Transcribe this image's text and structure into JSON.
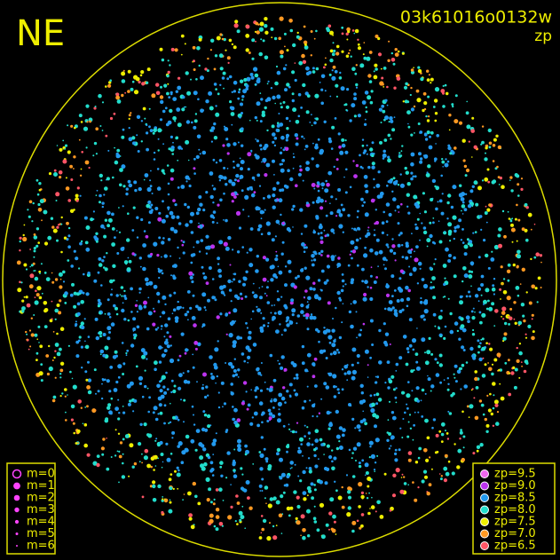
{
  "corner_label": "NE",
  "image_id": "03k61016o0132w",
  "mode": "zp",
  "magnitude_legend": [
    "m=0",
    "m=1",
    "m=2",
    "m=3",
    "m=4",
    "m=5",
    "m=6"
  ],
  "zp_legend": [
    {
      "label": "zp=9.5",
      "color": "#ee66ee"
    },
    {
      "label": "zp=9.0",
      "color": "#bb33ee"
    },
    {
      "label": "zp=8.5",
      "color": "#2299ee"
    },
    {
      "label": "zp=8.0",
      "color": "#22ddcc"
    },
    {
      "label": "zp=7.5",
      "color": "#eeee00"
    },
    {
      "label": "zp=7.0",
      "color": "#ff9922"
    },
    {
      "label": "zp=6.5",
      "color": "#ff5566"
    }
  ]
}
